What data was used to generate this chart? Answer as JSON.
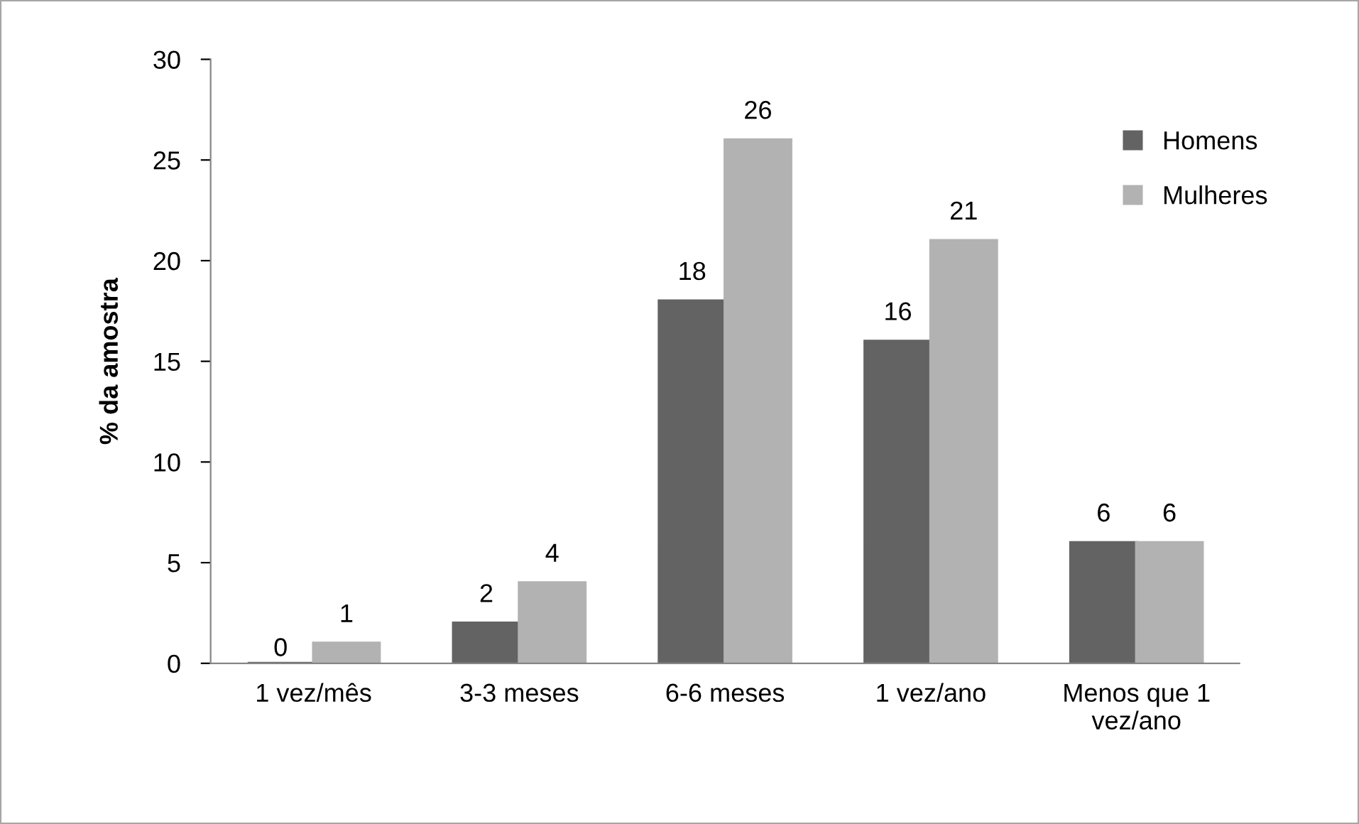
{
  "chart_data": {
    "type": "bar",
    "ylabel": "% da amostra",
    "categories": [
      "1 vez/mês",
      "3-3 meses",
      "6-6 meses",
      "1 vez/ano",
      "Menos que 1\nvez/ano"
    ],
    "series": [
      {
        "name": "Homens",
        "color": "#636363",
        "values": [
          0,
          2,
          18,
          16,
          6
        ]
      },
      {
        "name": "Mulheres",
        "color": "#b2b2b2",
        "values": [
          1,
          4,
          26,
          21,
          6
        ]
      }
    ],
    "ylim": [
      0,
      30
    ],
    "yticks": [
      0,
      5,
      10,
      15,
      20,
      25,
      30
    ],
    "data_labels": true,
    "grid": false,
    "legend": "top right"
  }
}
